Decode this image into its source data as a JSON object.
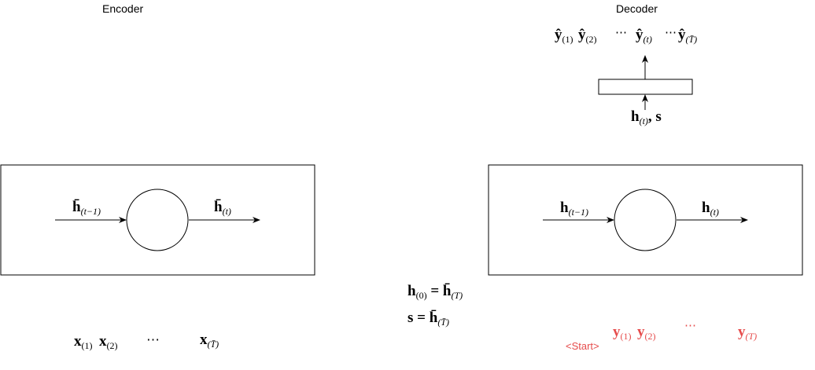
{
  "encoder": {
    "title": "Encoder",
    "h_in": "h̄",
    "h_in_sub": "(t−1)",
    "h_out": "h̄",
    "h_out_sub": "(t)",
    "inputs": {
      "x1": "x",
      "x1_sub": "(1)",
      "x2": "x",
      "x2_sub": "(2)",
      "dots": "⋯",
      "xT": "x",
      "xT_sub": "(T̄)"
    }
  },
  "decoder": {
    "title": "Decoder",
    "h_in": "h",
    "h_in_sub": "(t−1)",
    "h_out": "h",
    "h_out_sub": "(t)",
    "proj_input": "h",
    "proj_input_sub": "(t)",
    "proj_input_tail": ", s",
    "outputs": {
      "y1": "ŷ",
      "y1_sub": "(1)",
      "y2": "ŷ",
      "y2_sub": "(2)",
      "dots1": "⋯",
      "yt": "ŷ",
      "yt_sub": "(t)",
      "dots2": "⋯",
      "yT": "ŷ",
      "yT_sub": "(T̄)"
    },
    "targets": {
      "start": "<Start>",
      "y1": "y",
      "y1_sub": "(1)",
      "y2": "y",
      "y2_sub": "(2)",
      "dots": "⋯",
      "yT": "y",
      "yT_sub": "(T)"
    }
  },
  "bridge": {
    "eq1_lhs": "h",
    "eq1_lhs_sub": "(0)",
    "eq1_mid": " = ",
    "eq1_rhs": "h̄",
    "eq1_rhs_sub": "(T)",
    "eq2_lhs": "s",
    "eq2_mid": " = ",
    "eq2_rhs": "h̄",
    "eq2_rhs_sub": "(T̄)"
  },
  "colors": {
    "target_text": "#e64c4c",
    "stroke": "#000000"
  }
}
